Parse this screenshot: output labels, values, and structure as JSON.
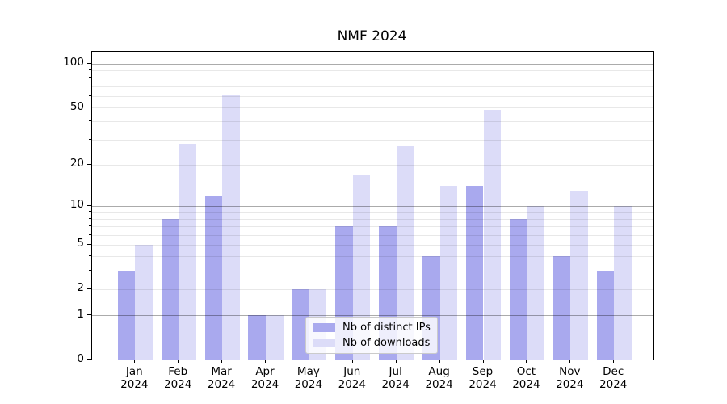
{
  "title": "NMF 2024",
  "chart_data": {
    "type": "bar",
    "title": "NMF 2024",
    "categories": [
      "Jan",
      "Feb",
      "Mar",
      "Apr",
      "May",
      "Jun",
      "Jul",
      "Aug",
      "Sep",
      "Oct",
      "Nov",
      "Dec"
    ],
    "year_label": "2024",
    "series": [
      {
        "name": "Nb of distinct IPs",
        "color": "#a9a9ee",
        "values": [
          3,
          8,
          12,
          1,
          2,
          7,
          7,
          4,
          14,
          8,
          4,
          3
        ]
      },
      {
        "name": "Nb of downloads",
        "color": "#dcdcf8",
        "values": [
          5,
          28,
          61,
          1,
          2,
          17,
          27,
          14,
          48,
          10,
          13,
          10
        ]
      }
    ],
    "y_scale": "log1p",
    "ylim": [
      0,
      121
    ],
    "y_ticks": [
      0,
      1,
      2,
      5,
      10,
      20,
      50,
      100
    ],
    "y_minor_ticks": [
      2,
      3,
      4,
      5,
      6,
      7,
      8,
      9,
      20,
      30,
      40,
      50,
      60,
      70,
      80,
      90
    ],
    "y_major_gridlines": [
      1,
      10,
      100
    ],
    "grid": true,
    "legend_position": "lower center",
    "xlabel": "",
    "ylabel": ""
  },
  "legend": {
    "items": [
      {
        "label": "Nb of distinct IPs",
        "color": "#a9a9ee"
      },
      {
        "label": "Nb of downloads",
        "color": "#dcdcf8"
      }
    ]
  }
}
